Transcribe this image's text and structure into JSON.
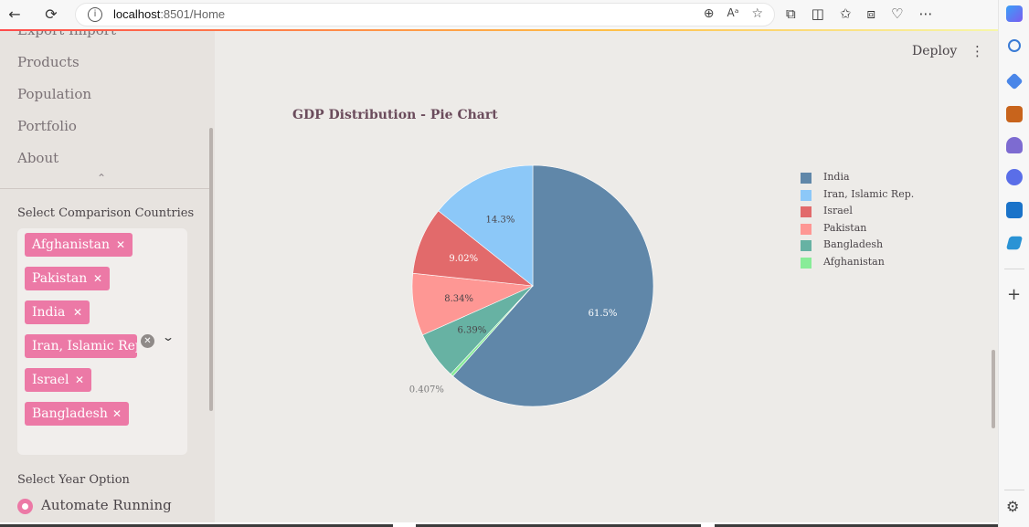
{
  "browser": {
    "url_host": "localhost",
    "url_rest": ":8501/Home"
  },
  "sidebar": {
    "nav_items": [
      "Export Import",
      "Products",
      "Population",
      "Portfolio",
      "About"
    ],
    "comparison_label": "Select Comparison Countries",
    "selected_countries": [
      "Afghanistan",
      "Pakistan",
      "India",
      "Iran, Islamic Rep.",
      "Israel",
      "Bangladesh"
    ],
    "year_label": "Select Year Option",
    "year_option": "Automate Running"
  },
  "header": {
    "deploy_label": "Deploy"
  },
  "chart_data": {
    "type": "pie",
    "title": "GDP Distribution - Pie Chart",
    "legend_position": "right",
    "slices": [
      {
        "label": "India",
        "value": 61.5,
        "text": "61.5%",
        "color": "#6087a9"
      },
      {
        "label": "Afghanistan",
        "value": 0.407,
        "text": "0.407%",
        "color": "#88ec98"
      },
      {
        "label": "Bangladesh",
        "value": 6.39,
        "text": "6.39%",
        "color": "#67b2a3"
      },
      {
        "label": "Pakistan",
        "value": 8.34,
        "text": "8.34%",
        "color": "#fe9794"
      },
      {
        "label": "Israel",
        "value": 9.02,
        "text": "9.02%",
        "color": "#e26a6b"
      },
      {
        "label": "Iran, Islamic Rep.",
        "value": 14.3,
        "text": "14.3%",
        "color": "#8cc8f8"
      }
    ],
    "legend": [
      {
        "label": "India",
        "color": "#6087a9"
      },
      {
        "label": "Iran, Islamic Rep.",
        "color": "#8cc8f8"
      },
      {
        "label": "Israel",
        "color": "#e26a6b"
      },
      {
        "label": "Pakistan",
        "color": "#fe9794"
      },
      {
        "label": "Bangladesh",
        "color": "#67b2a3"
      },
      {
        "label": "Afghanistan",
        "color": "#88ec98"
      }
    ]
  }
}
